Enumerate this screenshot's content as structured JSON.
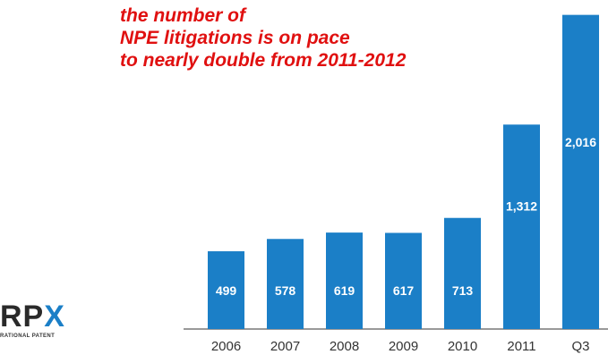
{
  "annotation": {
    "line1": "the number of",
    "line2": "NPE litigations is on pace",
    "line3": "to nearly double from 2011-2012"
  },
  "logo": {
    "mark": "RPX",
    "tagline": "RATIONAL PATENT"
  },
  "colors": {
    "annotation": "#e01010",
    "bar": "#1b7fc7",
    "logo_rp": "#2a2a2a",
    "logo_x": "#1b7fc7"
  },
  "chart_data": {
    "type": "bar",
    "categories": [
      "2006",
      "2007",
      "2008",
      "2009",
      "2010",
      "2011",
      "Q3"
    ],
    "values": [
      499,
      578,
      619,
      617,
      713,
      1312,
      2016
    ],
    "value_labels": [
      "499",
      "578",
      "619",
      "617",
      "713",
      "1,312",
      "2,016"
    ],
    "title": "",
    "xlabel": "",
    "ylabel": "",
    "ylim": [
      0,
      2100
    ],
    "grid": false,
    "legend": "none"
  }
}
